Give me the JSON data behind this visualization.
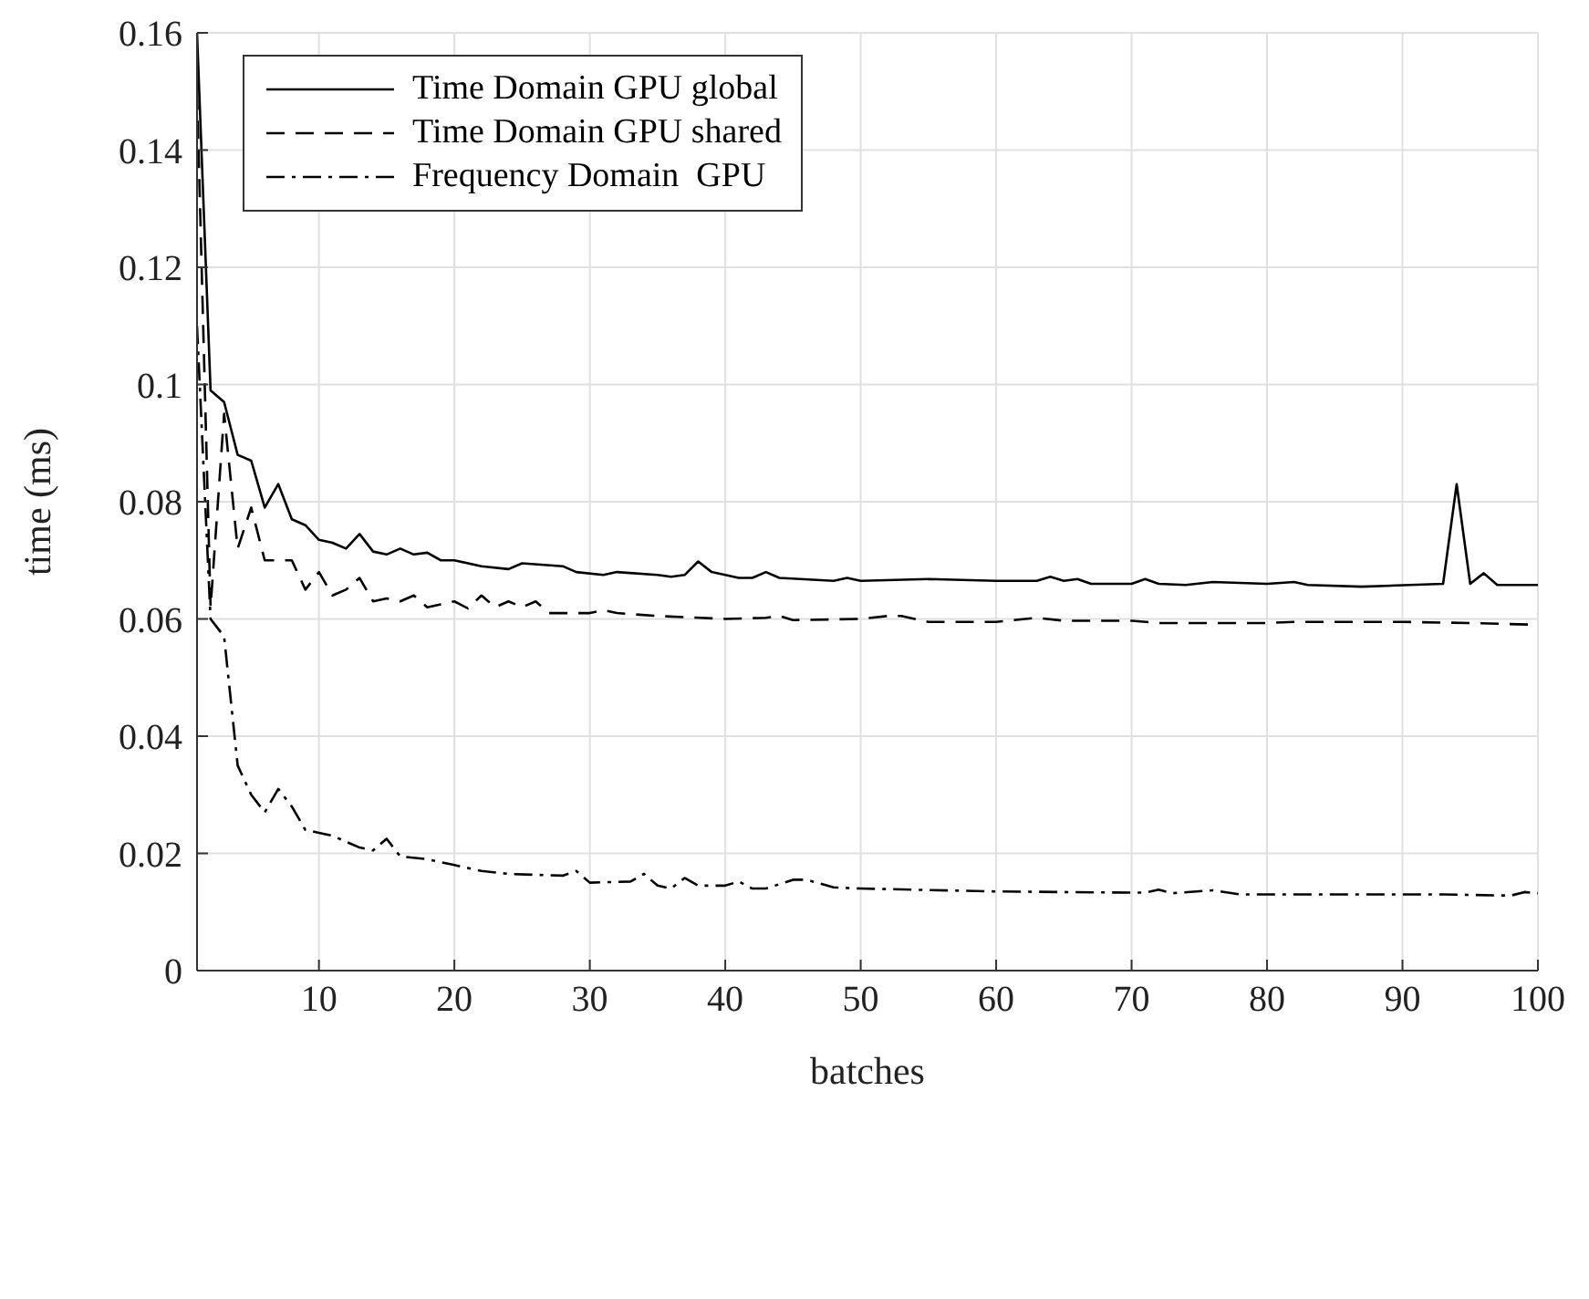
{
  "chart_data": {
    "type": "line",
    "xlabel": "batches",
    "ylabel": "time (ms)",
    "xlim": [
      1,
      100
    ],
    "xticks": [
      10,
      20,
      30,
      40,
      50,
      60,
      70,
      80,
      90,
      100
    ],
    "ylim": [
      0,
      0.16
    ],
    "yticks": [
      0,
      0.02,
      0.04,
      0.06,
      0.08,
      0.1,
      0.12,
      0.14,
      0.16
    ],
    "grid": true,
    "legend": "top left",
    "marker": "none",
    "series": [
      {
        "name": "Time Domain GPU global",
        "color": "#000000",
        "line_style": "solid",
        "x": [
          1,
          2,
          3,
          4,
          5,
          6,
          7,
          8,
          9,
          10,
          11,
          12,
          13,
          14,
          15,
          16,
          17,
          18,
          19,
          20,
          22,
          24,
          25,
          28,
          29,
          31,
          32,
          35,
          36,
          37,
          38,
          39,
          41,
          42,
          43,
          44,
          48,
          49,
          50,
          55,
          60,
          63,
          64,
          65,
          66,
          67,
          70,
          71,
          72,
          74,
          76,
          80,
          82,
          83,
          87,
          93,
          94,
          95,
          96,
          97,
          100
        ],
        "values": [
          0.16,
          0.099,
          0.097,
          0.088,
          0.087,
          0.079,
          0.083,
          0.077,
          0.076,
          0.0735,
          0.073,
          0.072,
          0.0745,
          0.0715,
          0.071,
          0.072,
          0.071,
          0.0713,
          0.07,
          0.07,
          0.069,
          0.0685,
          0.0695,
          0.069,
          0.068,
          0.0675,
          0.068,
          0.0675,
          0.0672,
          0.0675,
          0.0698,
          0.068,
          0.067,
          0.067,
          0.068,
          0.067,
          0.0665,
          0.067,
          0.0665,
          0.0668,
          0.0665,
          0.0665,
          0.0672,
          0.0665,
          0.0668,
          0.066,
          0.066,
          0.0668,
          0.066,
          0.0658,
          0.0663,
          0.066,
          0.0663,
          0.0658,
          0.0655,
          0.066,
          0.083,
          0.066,
          0.0678,
          0.0658,
          0.0658
        ]
      },
      {
        "name": "Time Domain GPU shared",
        "color": "#000000",
        "line_style": "dashed",
        "x": [
          1,
          2,
          3,
          4,
          5,
          6,
          7,
          8,
          9,
          10,
          11,
          12,
          13,
          14,
          15,
          16,
          17,
          18,
          19,
          20,
          21,
          22,
          23,
          24,
          25,
          26,
          27,
          30,
          31,
          32,
          35,
          40,
          43,
          44,
          45,
          50,
          52,
          53,
          55,
          60,
          63,
          65,
          70,
          72,
          80,
          82,
          90,
          95,
          100
        ],
        "values": [
          0.15,
          0.062,
          0.095,
          0.072,
          0.079,
          0.07,
          0.07,
          0.07,
          0.065,
          0.068,
          0.064,
          0.065,
          0.067,
          0.063,
          0.0635,
          0.063,
          0.064,
          0.062,
          0.0625,
          0.063,
          0.0618,
          0.064,
          0.062,
          0.063,
          0.062,
          0.063,
          0.061,
          0.061,
          0.0615,
          0.061,
          0.0605,
          0.06,
          0.0602,
          0.0605,
          0.0598,
          0.06,
          0.0605,
          0.0605,
          0.0595,
          0.0595,
          0.0602,
          0.0597,
          0.0597,
          0.0593,
          0.0593,
          0.0595,
          0.0595,
          0.0593,
          0.059
        ]
      },
      {
        "name": "Frequency Domain  GPU",
        "color": "#000000",
        "line_style": "dashdot",
        "x": [
          1,
          2,
          3,
          4,
          5,
          6,
          7,
          8,
          9,
          10,
          11,
          12,
          13,
          14,
          15,
          16,
          18,
          20,
          22,
          24,
          28,
          29,
          30,
          33,
          34,
          35,
          36,
          37,
          38,
          40,
          41,
          42,
          43,
          45,
          46,
          48,
          50,
          60,
          70,
          71,
          72,
          73,
          76,
          78,
          90,
          93,
          98,
          99,
          100
        ],
        "values": [
          0.11,
          0.06,
          0.057,
          0.035,
          0.03,
          0.027,
          0.031,
          0.028,
          0.024,
          0.0235,
          0.023,
          0.022,
          0.021,
          0.0205,
          0.0225,
          0.0195,
          0.019,
          0.018,
          0.017,
          0.0165,
          0.0162,
          0.017,
          0.015,
          0.0152,
          0.0165,
          0.0145,
          0.014,
          0.0158,
          0.0145,
          0.0145,
          0.0152,
          0.014,
          0.014,
          0.0155,
          0.0155,
          0.0142,
          0.014,
          0.0135,
          0.0133,
          0.0133,
          0.0138,
          0.0132,
          0.0137,
          0.013,
          0.013,
          0.013,
          0.0128,
          0.0134,
          0.0132
        ]
      }
    ]
  }
}
